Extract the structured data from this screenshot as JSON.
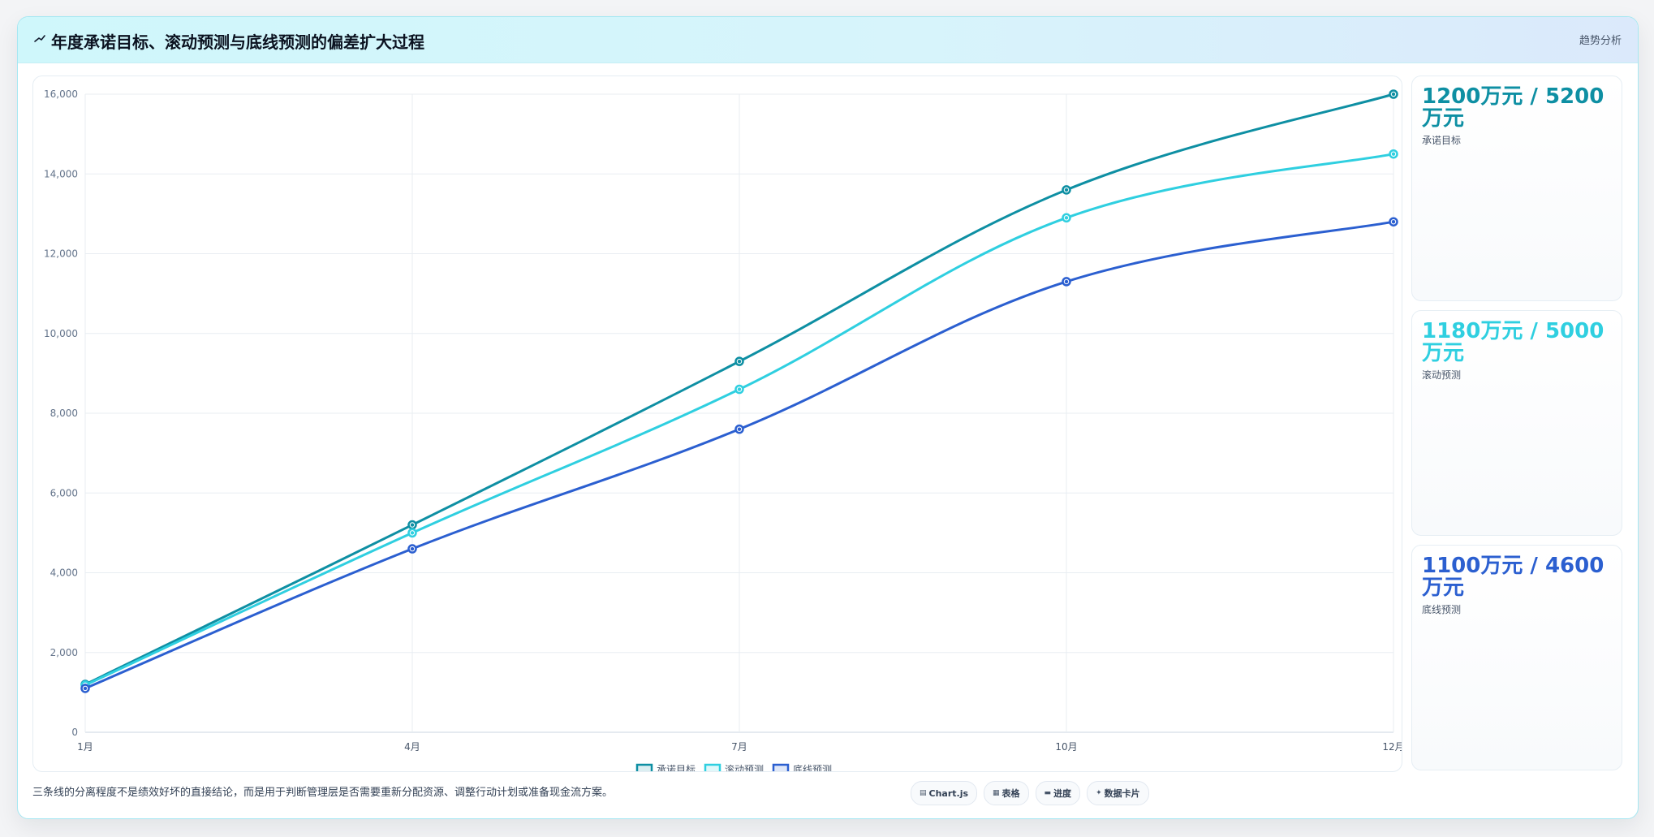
{
  "header": {
    "title": "年度承诺目标、滚动预测与底线预测的偏差扩大过程",
    "tag": "趋势分析"
  },
  "chart_data": {
    "type": "line",
    "categories": [
      "1月",
      "4月",
      "7月",
      "10月",
      "12月"
    ],
    "series": [
      {
        "name": "承诺目标",
        "values": [
          1200,
          5200,
          9300,
          13600,
          16000
        ],
        "color": "#0e8fa3"
      },
      {
        "name": "滚动预测",
        "values": [
          1180,
          5000,
          8600,
          12900,
          14500
        ],
        "color": "#2fcfe0"
      },
      {
        "name": "底线预测",
        "values": [
          1100,
          4600,
          7600,
          11300,
          12800
        ],
        "color": "#2b5fd0"
      }
    ],
    "ylim": [
      0,
      16000
    ],
    "yticks": [
      0,
      2000,
      4000,
      6000,
      8000,
      10000,
      12000,
      14000,
      16000
    ],
    "ytick_labels": [
      "0",
      "2,000",
      "4,000",
      "6,000",
      "8,000",
      "10,000",
      "12,000",
      "14,000",
      "16,000"
    ],
    "grid": true,
    "legend": "bottom-center"
  },
  "stats": [
    {
      "value": "1200万元 / 5200万元",
      "label": "承诺目标",
      "color": "#0e8fa3"
    },
    {
      "value": "1180万元 / 5000万元",
      "label": "滚动预测",
      "color": "#2fcfe0"
    },
    {
      "value": "1100万元 / 4600万元",
      "label": "底线预测",
      "color": "#2b5fd0"
    }
  ],
  "footer": {
    "note": "三条线的分离程度不是绩效好坏的直接结论，而是用于判断管理层是否需要重新分配资源、调整行动计划或准备现金流方案。",
    "chips": [
      {
        "icon": "chart-icon",
        "label": "Chart.js"
      },
      {
        "icon": "table-icon",
        "label": "表格"
      },
      {
        "icon": "progress-icon",
        "label": "进度"
      },
      {
        "icon": "sparkle-icon",
        "label": "数据卡片"
      }
    ]
  }
}
